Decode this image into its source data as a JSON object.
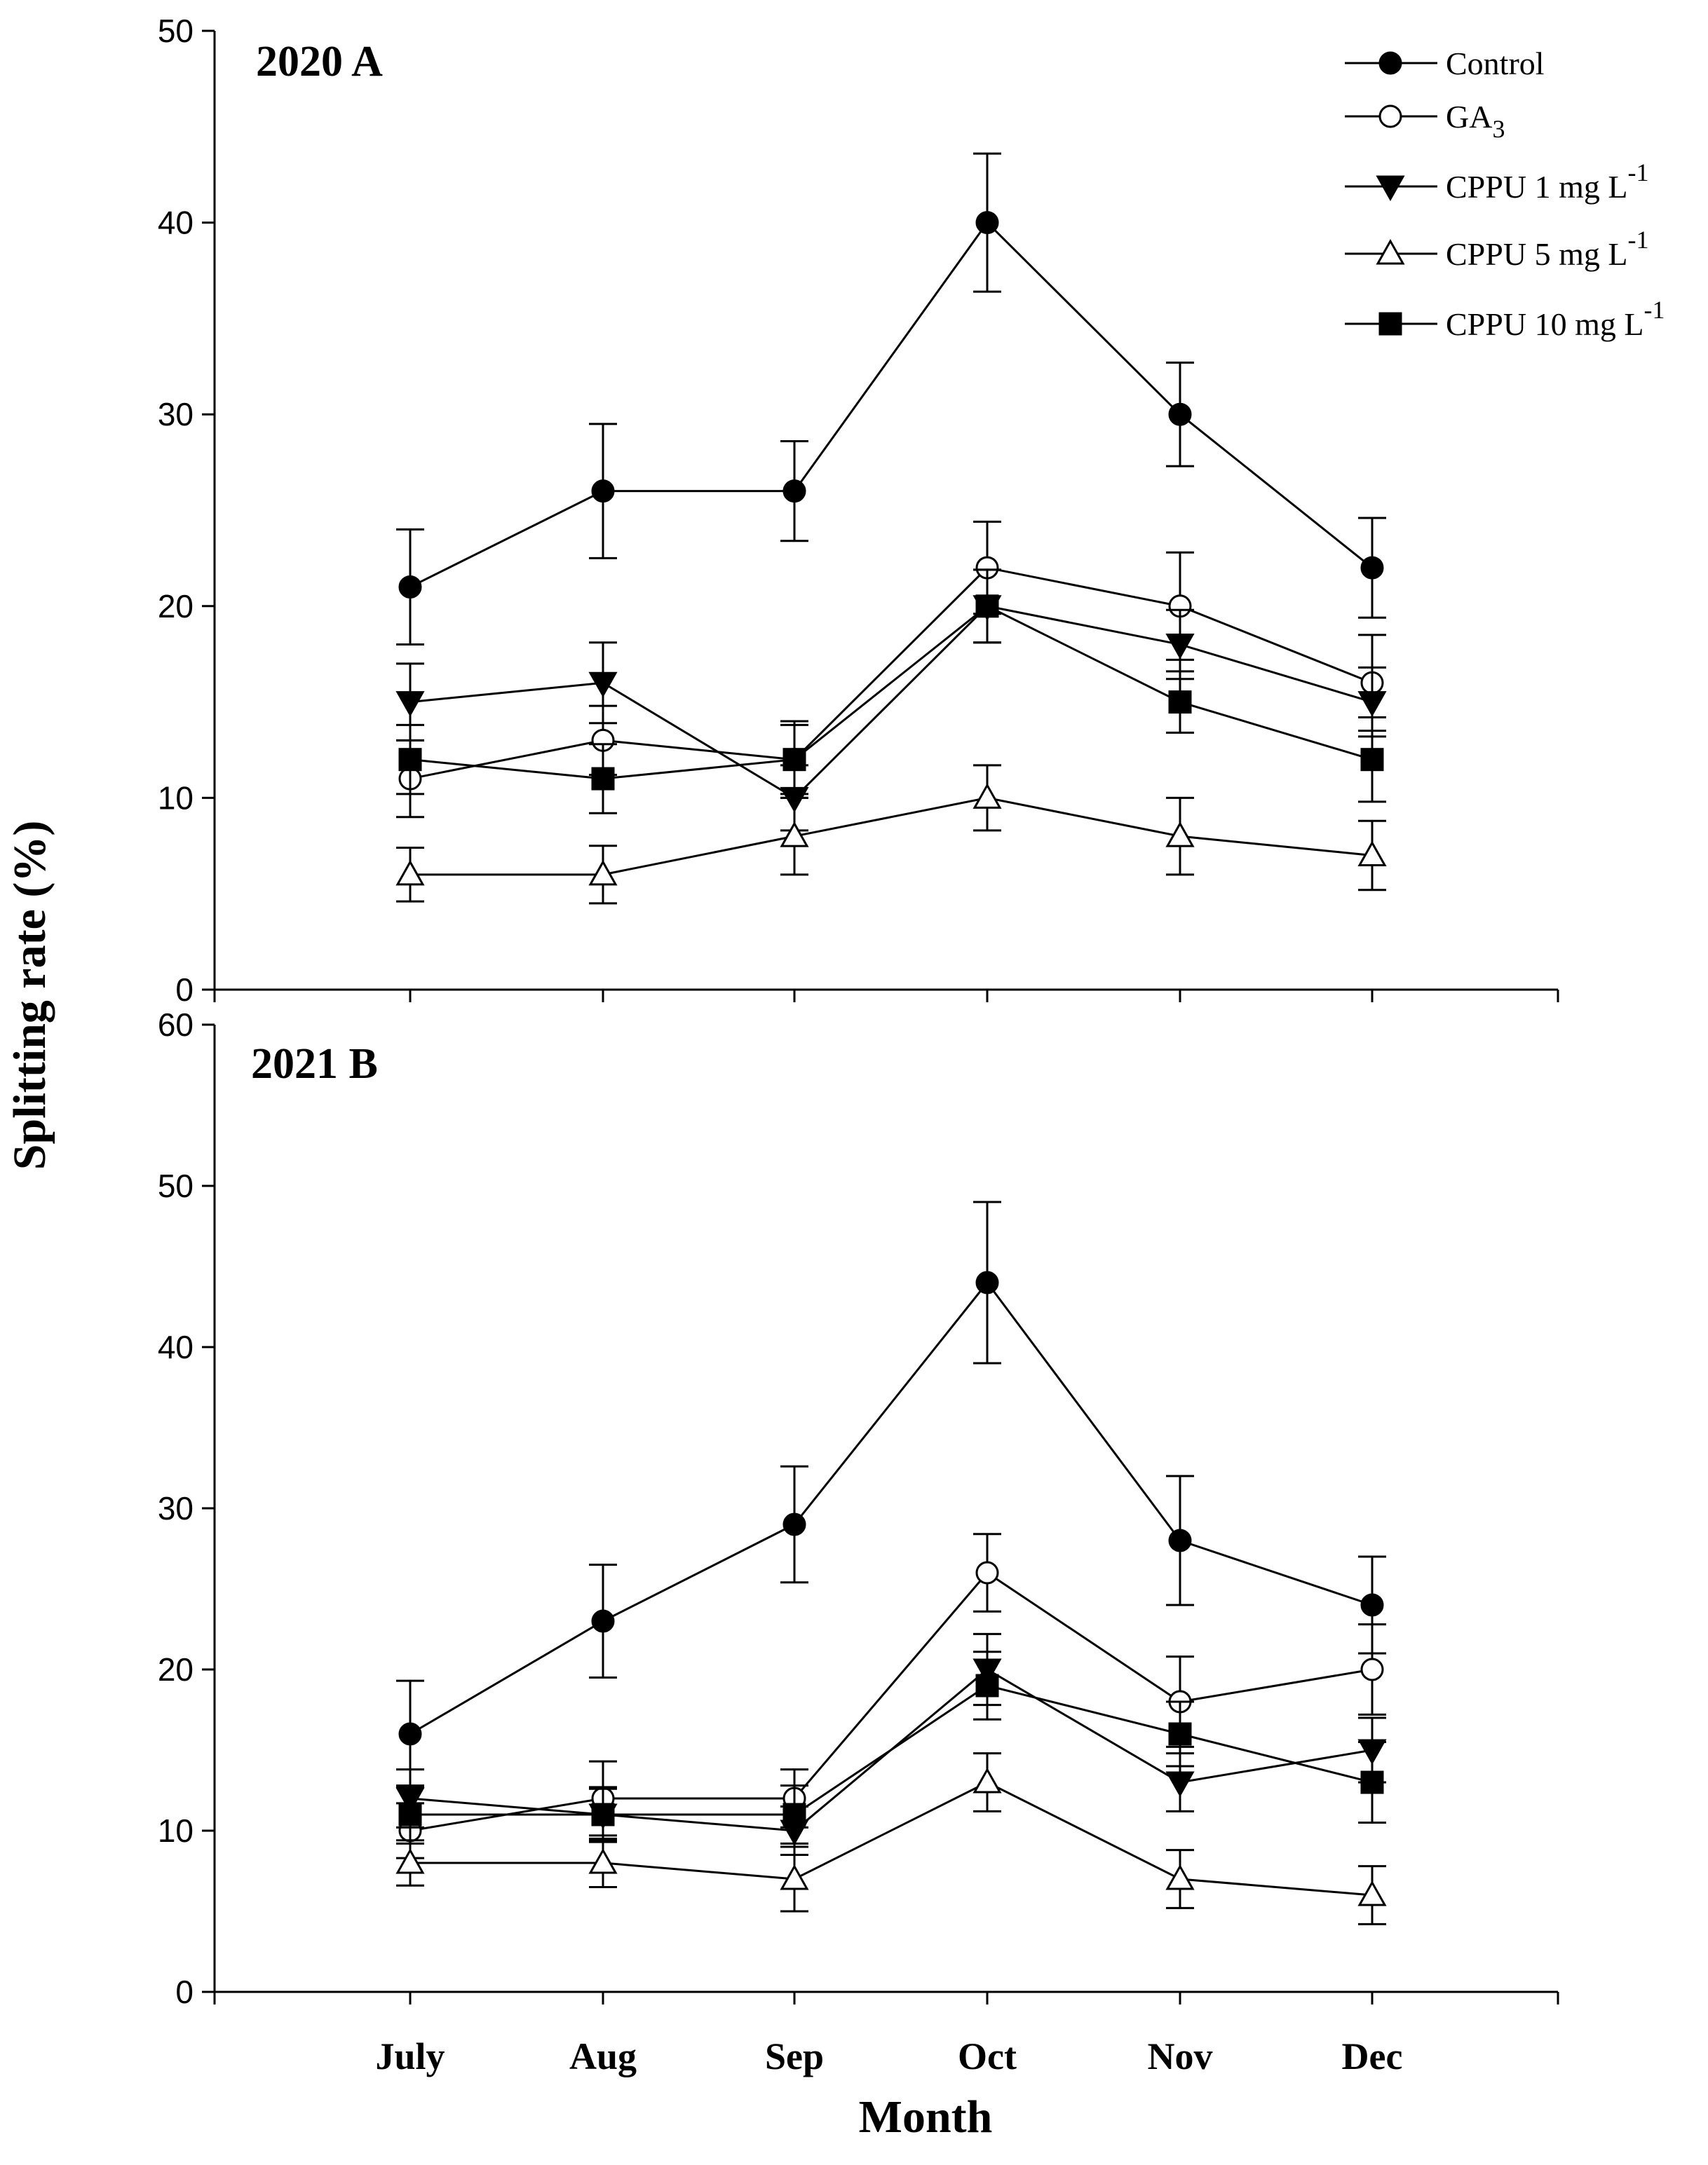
{
  "chart_data": [
    {
      "type": "line",
      "title": "2020 A",
      "categories": [
        "July",
        "Aug",
        "Sep",
        "Oct",
        "Nov",
        "Dec"
      ],
      "ylim": [
        0,
        50
      ],
      "yticks": [
        0,
        10,
        20,
        30,
        40,
        50
      ],
      "series": [
        {
          "name": "Control",
          "marker": "filled-circle",
          "values": [
            21,
            26,
            26,
            40,
            30,
            22
          ],
          "errors": [
            3,
            3.5,
            2.6,
            3.6,
            2.7,
            2.6
          ]
        },
        {
          "name": "GA3",
          "marker": "open-circle",
          "values": [
            11,
            13,
            12,
            22,
            20,
            16
          ],
          "errors": [
            2,
            1.8,
            1.8,
            2.4,
            2.8,
            2.5
          ]
        },
        {
          "name": "CPPU 1 mg L-1",
          "marker": "filled-triangle-down",
          "values": [
            15,
            16,
            10,
            20,
            18,
            15
          ],
          "errors": [
            2,
            2.1,
            1.7,
            1.9,
            1.8,
            1.8
          ]
        },
        {
          "name": "CPPU 5 mg L-1",
          "marker": "open-triangle-up",
          "values": [
            6,
            6,
            8,
            10,
            8,
            7
          ],
          "errors": [
            1.4,
            1.5,
            2,
            1.7,
            2,
            1.8
          ]
        },
        {
          "name": "CPPU 10 mg L-1",
          "marker": "filled-square",
          "values": [
            12,
            11,
            12,
            20,
            15,
            12
          ],
          "errors": [
            1.8,
            1.8,
            2,
            1.9,
            1.6,
            2.2
          ]
        }
      ]
    },
    {
      "type": "line",
      "title": "2021 B",
      "categories": [
        "July",
        "Aug",
        "Sep",
        "Oct",
        "Nov",
        "Dec"
      ],
      "xlabel": "Month",
      "ylim": [
        0,
        60
      ],
      "yticks": [
        0,
        10,
        20,
        30,
        40,
        50,
        60
      ],
      "series": [
        {
          "name": "Control",
          "marker": "filled-circle",
          "values": [
            16,
            23,
            29,
            44,
            28,
            24
          ],
          "errors": [
            3.3,
            3.5,
            3.6,
            5,
            4,
            3
          ]
        },
        {
          "name": "GA3",
          "marker": "open-circle",
          "values": [
            10,
            12,
            12,
            26,
            18,
            20
          ],
          "errors": [
            1.7,
            2.3,
            1.8,
            2.4,
            2.8,
            2.8
          ]
        },
        {
          "name": "CPPU 1 mg L-1",
          "marker": "filled-triangle-down",
          "values": [
            12,
            11,
            10,
            20,
            13,
            15
          ],
          "errors": [
            1.8,
            1.6,
            1.5,
            2.2,
            1.8,
            2
          ]
        },
        {
          "name": "CPPU 5 mg L-1",
          "marker": "open-triangle-up",
          "values": [
            8,
            8,
            7,
            13,
            7,
            6
          ],
          "errors": [
            1.4,
            1.5,
            2,
            1.8,
            1.8,
            1.8
          ]
        },
        {
          "name": "CPPU 10 mg L-1",
          "marker": "filled-square",
          "values": [
            11,
            11,
            11,
            19,
            16,
            13
          ],
          "errors": [
            1.8,
            1.7,
            1.8,
            2.1,
            2,
            2.5
          ]
        }
      ]
    }
  ],
  "labels": {
    "ylabel": "Splitting rate (%)",
    "xlabel": "Month"
  },
  "legend": [
    {
      "marker": "filled-circle",
      "text": "Control",
      "sub": "",
      "sup": ""
    },
    {
      "marker": "open-circle",
      "text": "GA",
      "sub": "3",
      "sup": ""
    },
    {
      "marker": "filled-triangle-down",
      "text": "CPPU 1 mg L",
      "sub": "",
      "sup": "-1"
    },
    {
      "marker": "open-triangle-up",
      "text": "CPPU 5 mg L",
      "sub": "",
      "sup": "-1"
    },
    {
      "marker": "filled-square",
      "text": "CPPU 10 mg L",
      "sub": "",
      "sup": "-1"
    }
  ]
}
